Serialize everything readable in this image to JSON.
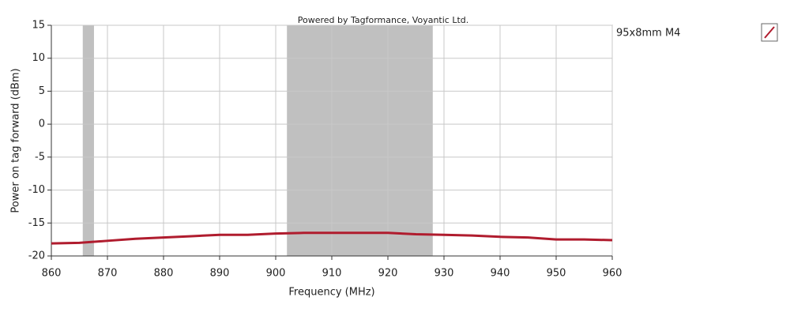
{
  "chart_data": {
    "type": "line",
    "annotation": "Powered by Tagformance, Voyantic Ltd.",
    "x_label": "Frequency (MHz)",
    "y_label": "Power on tag forward (dBm)",
    "x": [
      860,
      865,
      870,
      875,
      880,
      885,
      890,
      895,
      900,
      905,
      910,
      915,
      920,
      925,
      930,
      935,
      940,
      945,
      950,
      955,
      960
    ],
    "series": [
      {
        "name": "95x8mm M4",
        "color": "#b01c2e",
        "values": [
          -18.1,
          -18.0,
          -17.7,
          -17.4,
          -17.2,
          -17.0,
          -16.8,
          -16.8,
          -16.6,
          -16.5,
          -16.5,
          -16.5,
          -16.5,
          -16.7,
          -16.8,
          -16.9,
          -17.1,
          -17.2,
          -17.5,
          -17.5,
          -17.6
        ]
      }
    ],
    "shaded_ranges": [
      [
        865.6,
        867.6
      ],
      [
        902,
        928
      ]
    ],
    "shade_color": "#c0c0c0",
    "xlim": [
      860,
      960
    ],
    "ylim": [
      -20,
      15
    ],
    "xticks": [
      860,
      870,
      880,
      890,
      900,
      910,
      920,
      930,
      940,
      950,
      960
    ],
    "yticks": [
      -20,
      -15,
      -10,
      -5,
      0,
      5,
      10,
      15
    ],
    "grid": true
  }
}
